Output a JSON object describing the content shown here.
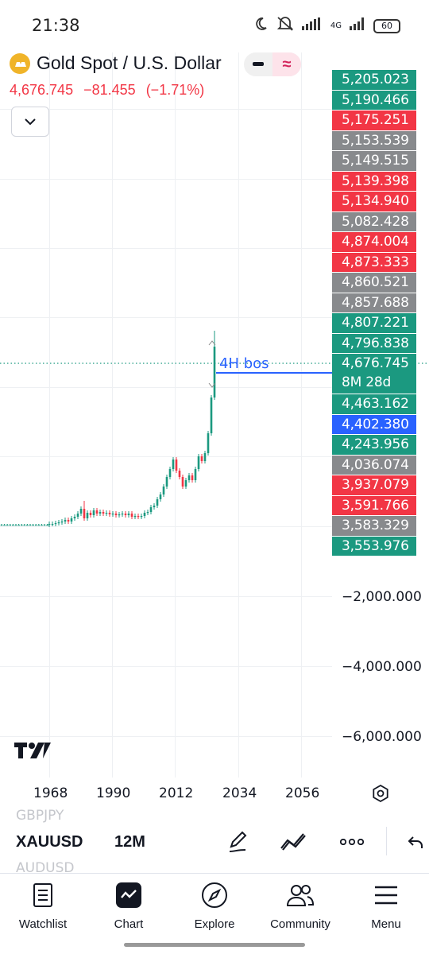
{
  "status": {
    "time": "21:38",
    "network": "4G",
    "battery": "60"
  },
  "header": {
    "title": "Gold Spot / U.S. Dollar",
    "price": "4,676.745",
    "change": "−81.455",
    "change_pct": "(−1.71%)"
  },
  "price_labels": [
    {
      "text": "5,205.023",
      "color": "green"
    },
    {
      "text": "5,190.466",
      "color": "green"
    },
    {
      "text": "5,175.251",
      "color": "red"
    },
    {
      "text": "5,153.539",
      "color": "gray"
    },
    {
      "text": "5,149.515",
      "color": "gray"
    },
    {
      "text": "5,139.398",
      "color": "red"
    },
    {
      "text": "5,134.940",
      "color": "red"
    },
    {
      "text": "5,082.428",
      "color": "gray"
    },
    {
      "text": "4,874.004",
      "color": "red"
    },
    {
      "text": "4,873.333",
      "color": "red"
    },
    {
      "text": "4,860.521",
      "color": "gray"
    },
    {
      "text": "4,857.688",
      "color": "gray"
    },
    {
      "text": "4,807.221",
      "color": "green"
    },
    {
      "text": "4,796.838",
      "color": "green"
    },
    {
      "text": "4,676.745",
      "sub": "8M 28d",
      "color": "green"
    },
    {
      "text": "4,463.162",
      "color": "green"
    },
    {
      "text": "4,402.380",
      "color": "blue"
    },
    {
      "text": "4,243.956",
      "color": "green"
    },
    {
      "text": "4,036.074",
      "color": "gray"
    },
    {
      "text": "3,937.079",
      "color": "red"
    },
    {
      "text": "3,591.766",
      "color": "red"
    },
    {
      "text": "3,583.329",
      "color": "gray"
    },
    {
      "text": "3,553.976",
      "color": "green"
    }
  ],
  "y_axis": [
    "−2,000.000",
    "−4,000.000",
    "−6,000.000"
  ],
  "x_axis": [
    "1968",
    "1990",
    "2012",
    "2034",
    "2056"
  ],
  "annotation": "4H bos",
  "toolbar": {
    "symbol": "XAUUSD",
    "interval": "12M",
    "ghost_above": "GBPJPY",
    "ghost_below": "AUDUSD"
  },
  "nav": [
    {
      "label": "Watchlist",
      "icon": "watchlist-icon"
    },
    {
      "label": "Chart",
      "icon": "chart-icon"
    },
    {
      "label": "Explore",
      "icon": "compass-icon"
    },
    {
      "label": "Community",
      "icon": "community-icon"
    },
    {
      "label": "Menu",
      "icon": "menu-icon"
    }
  ],
  "colors": {
    "up": "#1b9980",
    "down": "#f23645",
    "neutral": "#888a8d",
    "line": "#2962ff"
  }
}
